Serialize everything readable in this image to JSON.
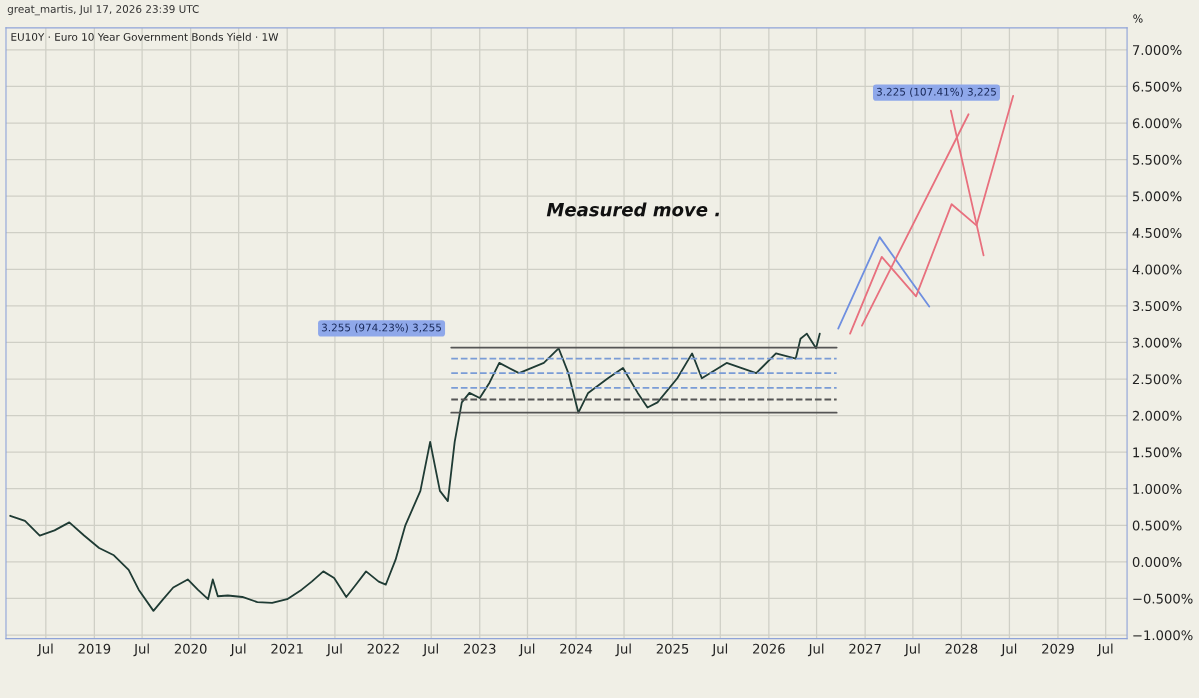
{
  "chart_data": {
    "type": "line",
    "title": "EU10Y · Euro 10 Year Government Bonds Yield · 1W",
    "subtitle": "great_martis, Jul 17, 2026 23:39 UTC",
    "ylabel": "%",
    "series": [
      {
        "color": "#1f3b34",
        "x": [
          "2018-02-16",
          "2018-04-13",
          "2018-06-08",
          "2018-08-03",
          "2018-09-28",
          "2018-11-23",
          "2019-01-19",
          "2019-03-16",
          "2019-05-11",
          "2019-06-18",
          "2019-08-13",
          "2019-09-19",
          "2019-10-27",
          "2019-12-21",
          "2020-01-28",
          "2020-03-07",
          "2020-03-25",
          "2020-04-13",
          "2020-05-21",
          "2020-07-15",
          "2020-09-10",
          "2020-11-05",
          "2021-01-01",
          "2021-02-25",
          "2021-04-04",
          "2021-05-18",
          "2021-06-28",
          "2021-08-13",
          "2021-09-19",
          "2021-10-27",
          "2021-12-14",
          "2022-01-10",
          "2022-02-16",
          "2022-03-25",
          "2022-05-21",
          "2022-06-27",
          "2022-08-03",
          "2022-09-02",
          "2022-09-28",
          "2022-10-25",
          "2022-11-23",
          "2023-01-01",
          "2023-02-07",
          "2023-03-16",
          "2023-05-30",
          "2023-09-01",
          "2023-10-27",
          "2023-12-03",
          "2024-01-10",
          "2024-02-16",
          "2024-05-01",
          "2024-06-27",
          "2024-08-22",
          "2024-09-28",
          "2024-11-05",
          "2025-01-19",
          "2025-03-16",
          "2025-04-22",
          "2025-07-25",
          "2025-11-14",
          "2026-01-28",
          "2026-04-13",
          "2026-05-01",
          "2026-05-25",
          "2026-06-29",
          "2026-07-13"
        ],
        "values": [
          0.63,
          0.56,
          0.36,
          0.43,
          0.54,
          0.36,
          0.19,
          0.09,
          -0.11,
          -0.38,
          -0.67,
          -0.51,
          -0.35,
          -0.24,
          -0.38,
          -0.51,
          -0.24,
          -0.47,
          -0.46,
          -0.48,
          -0.55,
          -0.56,
          -0.51,
          -0.38,
          -0.27,
          -0.13,
          -0.22,
          -0.48,
          -0.31,
          -0.13,
          -0.27,
          -0.31,
          0.03,
          0.5,
          0.97,
          1.64,
          0.97,
          0.83,
          1.64,
          2.18,
          2.31,
          2.24,
          2.45,
          2.72,
          2.58,
          2.72,
          2.92,
          2.58,
          2.04,
          2.31,
          2.51,
          2.65,
          2.31,
          2.11,
          2.18,
          2.51,
          2.85,
          2.51,
          2.72,
          2.58,
          2.85,
          2.78,
          3.05,
          3.12,
          2.92,
          3.12
        ]
      },
      {
        "color": "#555555",
        "x": [
          "2022-09-15",
          "2026-09-15"
        ],
        "values": [
          2.93,
          2.93
        ]
      },
      {
        "color": "#555555",
        "x": [
          "2022-09-15",
          "2026-09-15"
        ],
        "values": [
          2.04,
          2.04
        ]
      },
      {
        "color": "#7a9cd6",
        "line_style": "dashed",
        "x": [
          "2022-09-15",
          "2026-09-15"
        ],
        "values": [
          2.78,
          2.78
        ]
      },
      {
        "color": "#7a9cd6",
        "line_style": "dashed",
        "x": [
          "2022-09-15",
          "2026-09-15"
        ],
        "values": [
          2.58,
          2.58
        ]
      },
      {
        "color": "#7a9cd6",
        "line_style": "dashed",
        "x": [
          "2022-09-15",
          "2026-09-15"
        ],
        "values": [
          2.38,
          2.38
        ]
      },
      {
        "color": "#555555",
        "line_style": "dashed",
        "x": [
          "2022-09-15",
          "2026-09-15"
        ],
        "values": [
          2.22,
          2.22
        ]
      },
      {
        "color": "#6f8fe0",
        "x": [
          "2026-09-21",
          "2027-02-25",
          "2027-09-01"
        ],
        "values": [
          3.19,
          4.44,
          3.49
        ]
      },
      {
        "color": "#e8707e",
        "x": [
          "2026-11-05",
          "2027-03-05",
          "2027-07-13",
          "2027-11-25",
          "2028-02-27",
          "2028-07-15"
        ],
        "values": [
          3.12,
          4.17,
          3.63,
          4.89,
          4.6,
          6.37
        ]
      },
      {
        "color": "#e8707e",
        "x": [
          "2026-12-20",
          "2028-01-28"
        ],
        "values": [
          3.23,
          6.12
        ]
      },
      {
        "color": "#e8707e",
        "x": [
          "2027-11-22",
          "2028-03-25"
        ],
        "values": [
          6.17,
          4.19
        ]
      }
    ],
    "annotations": [
      "Measured move .",
      "3.255 (974.23%) 3,255",
      "3.225 (107.41%) 3,225"
    ],
    "xlim": [
      "2018-01-31",
      "2029-09-20"
    ],
    "xticks": [
      {
        "value": "2018-07-01",
        "label": "Jul"
      },
      {
        "value": "2019-01-01",
        "label": "2019"
      },
      {
        "value": "2019-07-01",
        "label": "Jul"
      },
      {
        "value": "2020-01-01",
        "label": "2020"
      },
      {
        "value": "2020-07-01",
        "label": "Jul"
      },
      {
        "value": "2021-01-01",
        "label": "2021"
      },
      {
        "value": "2021-07-01",
        "label": "Jul"
      },
      {
        "value": "2022-01-01",
        "label": "2022"
      },
      {
        "value": "2022-07-01",
        "label": "Jul"
      },
      {
        "value": "2023-01-01",
        "label": "2023"
      },
      {
        "value": "2023-07-01",
        "label": "Jul"
      },
      {
        "value": "2024-01-01",
        "label": "2024"
      },
      {
        "value": "2024-07-01",
        "label": "Jul"
      },
      {
        "value": "2025-01-01",
        "label": "2025"
      },
      {
        "value": "2025-07-01",
        "label": "Jul"
      },
      {
        "value": "2026-01-01",
        "label": "2026"
      },
      {
        "value": "2026-07-01",
        "label": "Jul"
      },
      {
        "value": "2027-01-01",
        "label": "2027"
      },
      {
        "value": "2027-07-01",
        "label": "Jul"
      },
      {
        "value": "2028-01-01",
        "label": "2028"
      },
      {
        "value": "2028-07-01",
        "label": "Jul"
      },
      {
        "value": "2029-01-01",
        "label": "2029"
      },
      {
        "value": "2029-07-01",
        "label": "Jul"
      }
    ],
    "ylim": [
      -1.05,
      7.3
    ],
    "yticks": [
      {
        "value": -1,
        "label": "−1.000%"
      },
      {
        "value": -0.5,
        "label": "−0.500%"
      },
      {
        "value": 0,
        "label": "0.000%"
      },
      {
        "value": 0.5,
        "label": "0.500%"
      },
      {
        "value": 1,
        "label": "1.000%"
      },
      {
        "value": 1.5,
        "label": "1.500%"
      },
      {
        "value": 2,
        "label": "2.000%"
      },
      {
        "value": 2.5,
        "label": "2.500%"
      },
      {
        "value": 3,
        "label": "3.000%"
      },
      {
        "value": 3.5,
        "label": "3.500%"
      },
      {
        "value": 4,
        "label": "4.000%"
      },
      {
        "value": 4.5,
        "label": "4.500%"
      },
      {
        "value": 5,
        "label": "5.000%"
      },
      {
        "value": 5.5,
        "label": "5.500%"
      },
      {
        "value": 6,
        "label": "6.000%"
      },
      {
        "value": 6.5,
        "label": "6.500%"
      },
      {
        "value": 7,
        "label": "7.000%"
      }
    ],
    "grid": true
  }
}
